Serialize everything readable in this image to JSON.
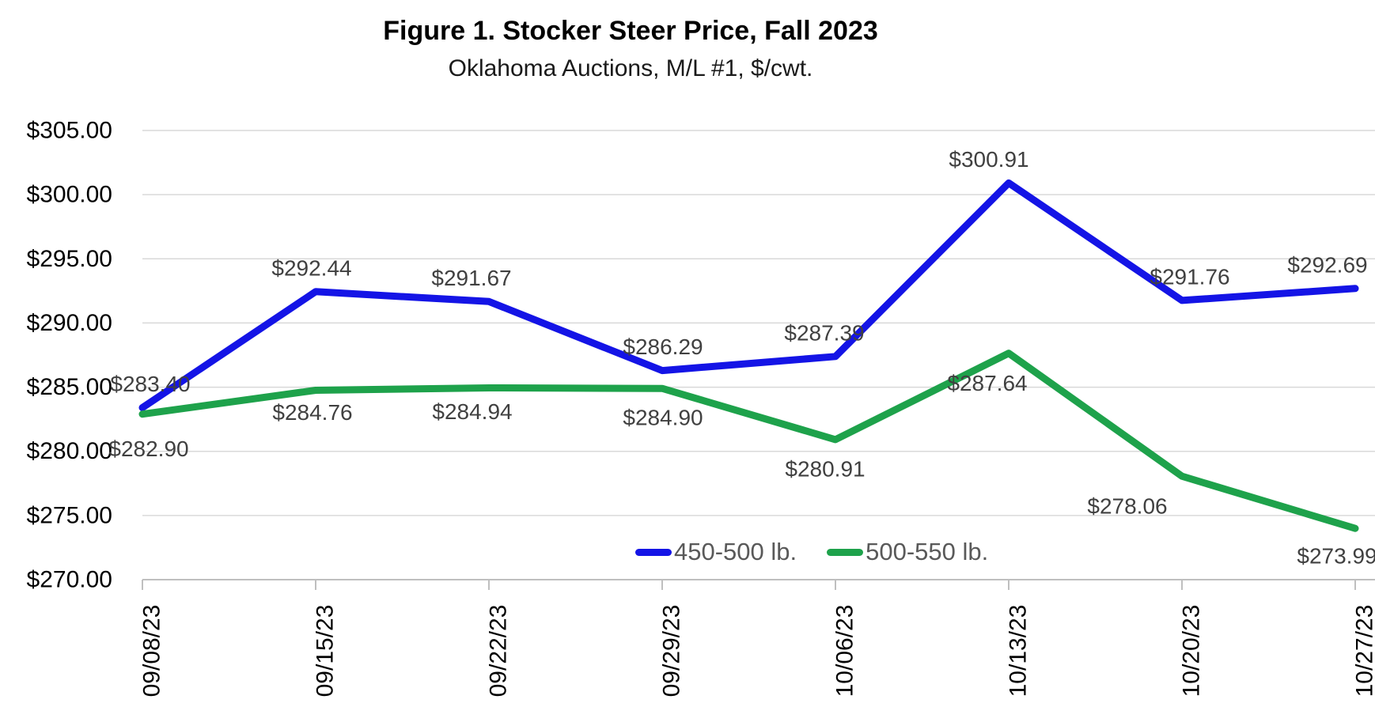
{
  "title": "Figure 1. Stocker Steer Price, Fall 2023",
  "subtitle": "Oklahoma Auctions, M/L #1, $/cwt.",
  "chart_data": {
    "type": "line",
    "categories": [
      "09/08/23",
      "09/15/23",
      "09/22/23",
      "09/29/23",
      "10/06/23",
      "10/13/23",
      "10/20/23",
      "10/27/23"
    ],
    "series": [
      {
        "name": "450-500 lb.",
        "color": "#1414E6",
        "values": [
          283.4,
          292.44,
          291.67,
          286.29,
          287.39,
          300.91,
          291.76,
          292.69
        ],
        "data_labels": [
          "$283.40",
          "$292.44",
          "$291.67",
          "$286.29",
          "$287.39",
          "$300.91",
          "$291.76",
          "$292.69"
        ],
        "label_placement": "above"
      },
      {
        "name": "500-550 lb.",
        "color": "#1EA24B",
        "values": [
          282.9,
          284.76,
          284.94,
          284.9,
          280.91,
          287.64,
          278.06,
          273.99
        ],
        "data_labels": [
          "$282.90",
          "$284.76",
          "$284.94",
          "$284.90",
          "$280.91",
          "$287.64",
          "$278.06",
          "$273.99"
        ],
        "label_placement": "below"
      }
    ],
    "y_axis": {
      "min": 270,
      "max": 305,
      "step": 5,
      "tick_labels": [
        "$305.00",
        "$300.00",
        "$295.00",
        "$290.00",
        "$285.00",
        "$280.00",
        "$275.00",
        "$270.00"
      ]
    },
    "x_axis": {
      "label_rotation_deg": 90
    },
    "grid": true,
    "legend_position": "bottom-inside",
    "styles": {
      "grid_color": "#D9D9D9",
      "axis_color": "#BFBFBF",
      "axis_text_color": "#000000",
      "data_label_color": "#404040",
      "legend_text_color": "#595959",
      "line_width": 9
    }
  }
}
